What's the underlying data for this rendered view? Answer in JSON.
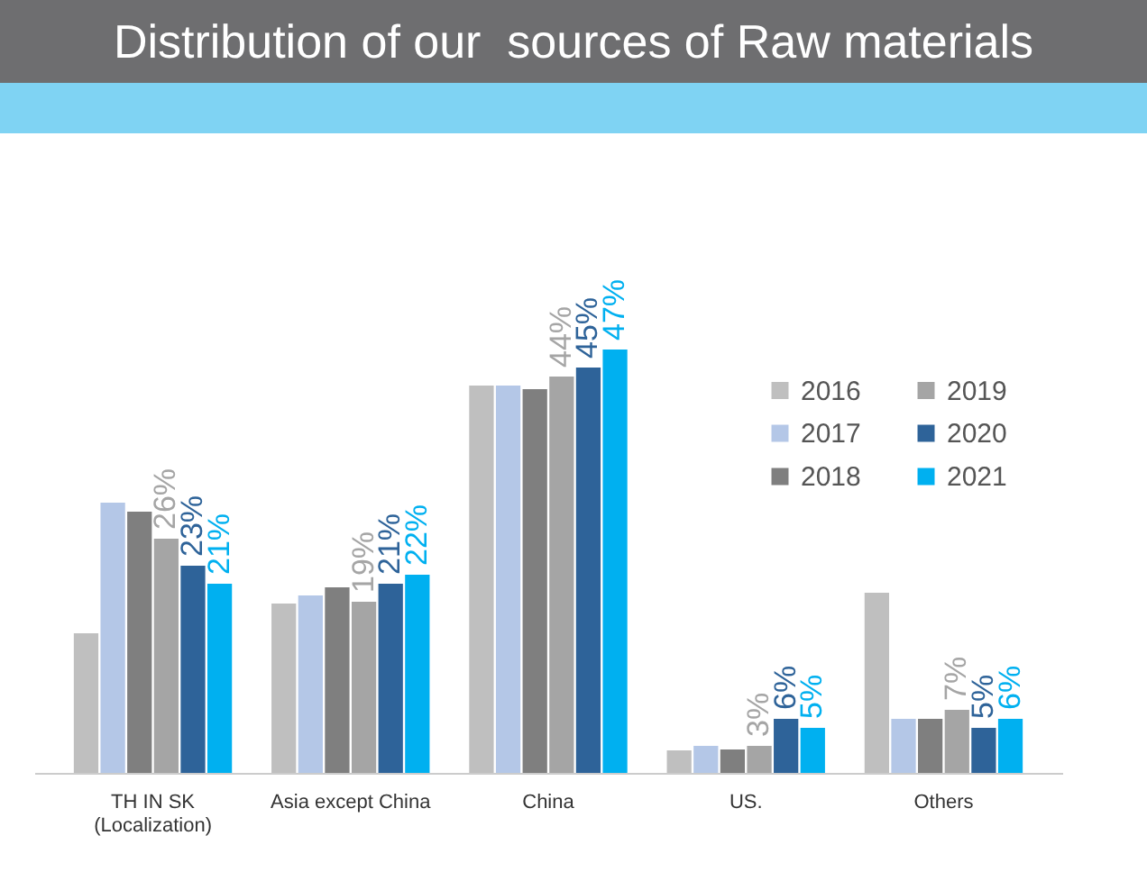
{
  "chart_data": {
    "type": "bar",
    "title": "Distribution of our  sources of Raw materials",
    "categories": [
      "TH IN SK\n(Localization)",
      "Asia except China",
      "China",
      "US.",
      "Others"
    ],
    "series": [
      {
        "name": "2016",
        "color": "#bfbfbf",
        "values": [
          15.5,
          18.8,
          43,
          2.5,
          20
        ]
      },
      {
        "name": "2017",
        "color": "#b4c7e7",
        "values": [
          30,
          19.7,
          43,
          3,
          6
        ]
      },
      {
        "name": "2018",
        "color": "#7f7f7f",
        "values": [
          29,
          20.6,
          42.6,
          2.6,
          6
        ]
      },
      {
        "name": "2019",
        "color": "#a5a5a5",
        "values": [
          26,
          19,
          44,
          3,
          7
        ],
        "value_labels": [
          "26%",
          "19%",
          "44%",
          "3%",
          "7%"
        ]
      },
      {
        "name": "2020",
        "color": "#2e6399",
        "values": [
          23,
          21,
          45,
          6,
          5
        ],
        "value_labels": [
          "23%",
          "21%",
          "45%",
          "6%",
          "5%"
        ]
      },
      {
        "name": "2021",
        "color": "#00b0f0",
        "values": [
          21,
          22,
          47,
          5,
          6
        ],
        "value_labels": [
          "21%",
          "22%",
          "47%",
          "5%",
          "6%"
        ]
      }
    ],
    "legend": "top right",
    "grid": false
  }
}
